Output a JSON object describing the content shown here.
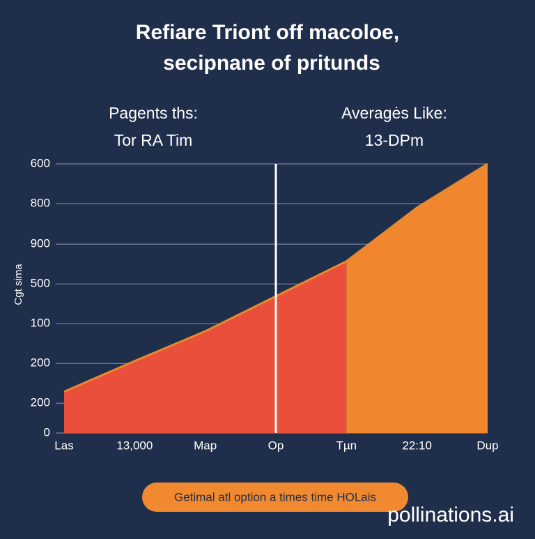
{
  "chart_data": {
    "type": "area",
    "title": [
      "Refiare Triont off macoloe,",
      "secipnane of pritunds"
    ],
    "left_heading": [
      "Pagents ths:",
      "Tor RA Tim"
    ],
    "right_heading": [
      "Averagės Like:",
      "13-DPm"
    ],
    "y_label": "Cgt sima",
    "categories": [
      "Las",
      "13,000",
      "Map",
      "Op",
      "Tµn",
      "22:10",
      "Dup"
    ],
    "series": [
      {
        "color": "#ea4f3b",
        "values": [
          1.04,
          1.81,
          2.56,
          3.44,
          4.32,
          null,
          null
        ]
      },
      {
        "color": "#f0862e",
        "values": [
          null,
          null,
          null,
          null,
          4.32,
          5.67,
          6.77
        ]
      }
    ],
    "line_color": "#e88a2a",
    "ylim": [
      0,
      6.77
    ],
    "yticks": [
      {
        "value": 6.77,
        "label": "600"
      },
      {
        "value": 5.77,
        "label": "800"
      },
      {
        "value": 4.75,
        "label": "900"
      },
      {
        "value": 3.75,
        "label": "500"
      },
      {
        "value": 2.75,
        "label": "100"
      },
      {
        "value": 1.75,
        "label": "200"
      },
      {
        "value": 0.75,
        "label": "200"
      },
      0
    ],
    "grid": true,
    "marker_category": 3,
    "button": "Getimal atl option a times time HOLais",
    "watermark": "pollinations.ai"
  }
}
